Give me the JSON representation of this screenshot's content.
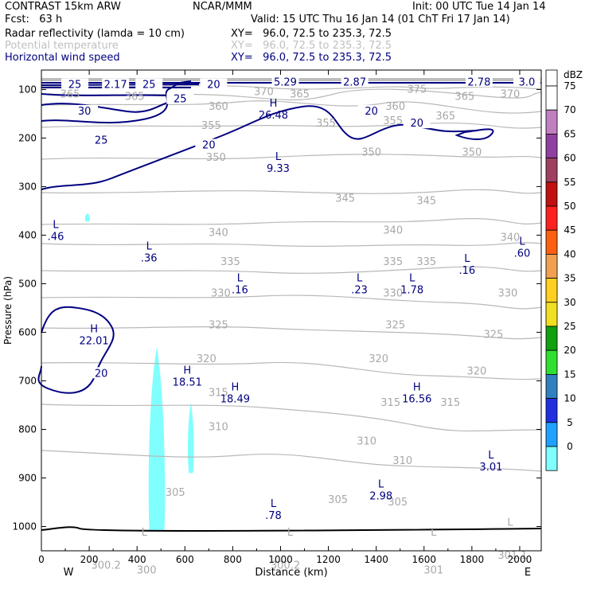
{
  "header": {
    "model": "CONTRAST 15km ARW",
    "fcst": "Fcst:   63 h",
    "org": "NCAR/MMM",
    "init": "Init: 00 UTC Tue 14 Jan 14",
    "valid": "Valid: 15 UTC Thu 16 Jan 14 (01 ChT Fri 17 Jan 14)",
    "fields": [
      {
        "name": "Radar reflectivity (lamda = 10 cm)",
        "xy": "XY=   96.0, 72.5 to 235.3, 72.5",
        "color": "#000000"
      },
      {
        "name": "Potential temperature",
        "xy": "XY=   96.0, 72.5 to 235.3, 72.5",
        "color": "#c0c0c0"
      },
      {
        "name": "Horizontal wind speed",
        "xy": "XY=   96.0, 72.5 to 235.3, 72.5",
        "color": "#000080"
      }
    ]
  },
  "chart_data": {
    "type": "cross-section",
    "title": "CONTRAST 15km ARW vertical cross section",
    "xlabel": "Distance (km)",
    "ylabel": "Pressure (hPa)",
    "xlim": [
      0,
      2090
    ],
    "ylim": [
      1050,
      60
    ],
    "xticks": [
      0,
      200,
      400,
      600,
      800,
      1000,
      1200,
      1400,
      1600,
      1800,
      2000
    ],
    "yticks": [
      100,
      200,
      300,
      400,
      500,
      600,
      700,
      800,
      900,
      1000
    ],
    "x_end_labels": {
      "left": "W",
      "right": "E"
    },
    "theta_labels": [
      {
        "x": 120,
        "p": 110,
        "text": "365"
      },
      {
        "x": 390,
        "p": 115,
        "text": "365"
      },
      {
        "x": 740,
        "p": 135,
        "text": "360"
      },
      {
        "x": 930,
        "p": 105,
        "text": "370"
      },
      {
        "x": 1080,
        "p": 110,
        "text": "365"
      },
      {
        "x": 1570,
        "p": 100,
        "text": "375"
      },
      {
        "x": 1480,
        "p": 135,
        "text": "360"
      },
      {
        "x": 1690,
        "p": 155,
        "text": "365"
      },
      {
        "x": 1770,
        "p": 115,
        "text": "365"
      },
      {
        "x": 1960,
        "p": 110,
        "text": "370"
      },
      {
        "x": 710,
        "p": 175,
        "text": "355"
      },
      {
        "x": 1190,
        "p": 170,
        "text": "355"
      },
      {
        "x": 1470,
        "p": 165,
        "text": "355"
      },
      {
        "x": 730,
        "p": 240,
        "text": "350"
      },
      {
        "x": 1380,
        "p": 230,
        "text": "350"
      },
      {
        "x": 1800,
        "p": 230,
        "text": "350"
      },
      {
        "x": 1270,
        "p": 325,
        "text": "345"
      },
      {
        "x": 1610,
        "p": 330,
        "text": "345"
      },
      {
        "x": 740,
        "p": 395,
        "text": "340"
      },
      {
        "x": 1470,
        "p": 390,
        "text": "340"
      },
      {
        "x": 1960,
        "p": 405,
        "text": "340"
      },
      {
        "x": 790,
        "p": 455,
        "text": "335"
      },
      {
        "x": 1470,
        "p": 455,
        "text": "335"
      },
      {
        "x": 1610,
        "p": 455,
        "text": "335"
      },
      {
        "x": 750,
        "p": 520,
        "text": "330"
      },
      {
        "x": 1470,
        "p": 520,
        "text": "330"
      },
      {
        "x": 1950,
        "p": 520,
        "text": "330"
      },
      {
        "x": 740,
        "p": 585,
        "text": "325"
      },
      {
        "x": 1480,
        "p": 585,
        "text": "325"
      },
      {
        "x": 1890,
        "p": 605,
        "text": "325"
      },
      {
        "x": 690,
        "p": 655,
        "text": "320"
      },
      {
        "x": 1410,
        "p": 655,
        "text": "320"
      },
      {
        "x": 1820,
        "p": 680,
        "text": "320"
      },
      {
        "x": 740,
        "p": 725,
        "text": "315"
      },
      {
        "x": 1460,
        "p": 745,
        "text": "315"
      },
      {
        "x": 1710,
        "p": 745,
        "text": "315"
      },
      {
        "x": 740,
        "p": 795,
        "text": "310"
      },
      {
        "x": 1360,
        "p": 825,
        "text": "310"
      },
      {
        "x": 1510,
        "p": 865,
        "text": "310"
      },
      {
        "x": 560,
        "p": 930,
        "text": "305"
      },
      {
        "x": 1240,
        "p": 945,
        "text": "305"
      },
      {
        "x": 1490,
        "p": 950,
        "text": "305"
      },
      {
        "x": 270,
        "p": 1080,
        "text": "300.2"
      },
      {
        "x": 440,
        "p": 1090,
        "text": "300"
      },
      {
        "x": 1020,
        "p": 1080,
        "text": "300.2"
      },
      {
        "x": 1640,
        "p": 1090,
        "text": "301"
      },
      {
        "x": 1970,
        "p": 1060,
        "text": "301.1"
      }
    ],
    "theta_extrema": [
      {
        "x": 430,
        "p": 1035,
        "text": "L"
      },
      {
        "x": 1040,
        "p": 1035,
        "text": "L"
      },
      {
        "x": 1640,
        "p": 1035,
        "text": "L"
      },
      {
        "x": 1960,
        "p": 1015,
        "text": "L"
      }
    ],
    "wind_labels": [
      {
        "x": 140,
        "p": 90,
        "text": "25"
      },
      {
        "x": 310,
        "p": 90,
        "text": "2.17"
      },
      {
        "x": 450,
        "p": 90,
        "text": "25"
      },
      {
        "x": 720,
        "p": 90,
        "text": "20"
      },
      {
        "x": 1020,
        "p": 85,
        "text": "5.29"
      },
      {
        "x": 1310,
        "p": 85,
        "text": "2.87"
      },
      {
        "x": 1830,
        "p": 85,
        "text": "2.78"
      },
      {
        "x": 2030,
        "p": 85,
        "text": "3.0"
      },
      {
        "x": 580,
        "p": 120,
        "text": "25"
      },
      {
        "x": 180,
        "p": 145,
        "text": "30"
      },
      {
        "x": 1380,
        "p": 145,
        "text": "20"
      },
      {
        "x": 1570,
        "p": 170,
        "text": "20"
      },
      {
        "x": 250,
        "p": 205,
        "text": "25"
      },
      {
        "x": 700,
        "p": 215,
        "text": "20"
      },
      {
        "x": 250,
        "p": 685,
        "text": "20"
      }
    ],
    "wind_extrema": [
      {
        "x": 970,
        "p": 135,
        "letter": "H",
        "value": "26.48"
      },
      {
        "x": 990,
        "p": 245,
        "letter": "L",
        "value": "9.33"
      },
      {
        "x": 60,
        "p": 385,
        "letter": "L",
        "value": ".46"
      },
      {
        "x": 450,
        "p": 430,
        "letter": "L",
        "value": ".36"
      },
      {
        "x": 830,
        "p": 495,
        "letter": "L",
        "value": ".16"
      },
      {
        "x": 1330,
        "p": 495,
        "letter": "L",
        "value": ".23"
      },
      {
        "x": 1550,
        "p": 495,
        "letter": "L",
        "value": "1.78"
      },
      {
        "x": 1780,
        "p": 455,
        "letter": "L",
        "value": ".16"
      },
      {
        "x": 2010,
        "p": 420,
        "letter": "L",
        "value": ".60"
      },
      {
        "x": 220,
        "p": 600,
        "letter": "H",
        "value": "22.01"
      },
      {
        "x": 610,
        "p": 685,
        "letter": "H",
        "value": "18.51"
      },
      {
        "x": 810,
        "p": 720,
        "letter": "H",
        "value": "18.49"
      },
      {
        "x": 1570,
        "p": 720,
        "letter": "H",
        "value": "16.56"
      },
      {
        "x": 1880,
        "p": 860,
        "letter": "L",
        "value": "3.01"
      },
      {
        "x": 1420,
        "p": 920,
        "letter": "L",
        "value": "2.98"
      },
      {
        "x": 970,
        "p": 960,
        "letter": "L",
        "value": ".78"
      }
    ],
    "legend": {
      "title": "dBZ",
      "levels": [
        "75",
        "70",
        "65",
        "60",
        "55",
        "50",
        "45",
        "40",
        "35",
        "30",
        "25",
        "20",
        "15",
        "10",
        "5",
        "0"
      ],
      "colors": [
        "#ffffff",
        "#c080c0",
        "#9040a0",
        "#a04060",
        "#c01010",
        "#ff2020",
        "#ff6010",
        "#f0a050",
        "#ffd020",
        "#f0e020",
        "#10a010",
        "#30e030",
        "#3080c0",
        "#2030e0",
        "#20a0ff",
        "#80ffff"
      ]
    },
    "reflectivity_cells": [
      {
        "x0": 445,
        "x1": 520,
        "p0": 630,
        "p1": 1010,
        "dbz": 5
      },
      {
        "x0": 610,
        "x1": 640,
        "p0": 745,
        "p1": 890,
        "dbz": 5
      },
      {
        "x0": 180,
        "x1": 205,
        "p0": 355,
        "p1": 372,
        "dbz": 5
      }
    ]
  }
}
